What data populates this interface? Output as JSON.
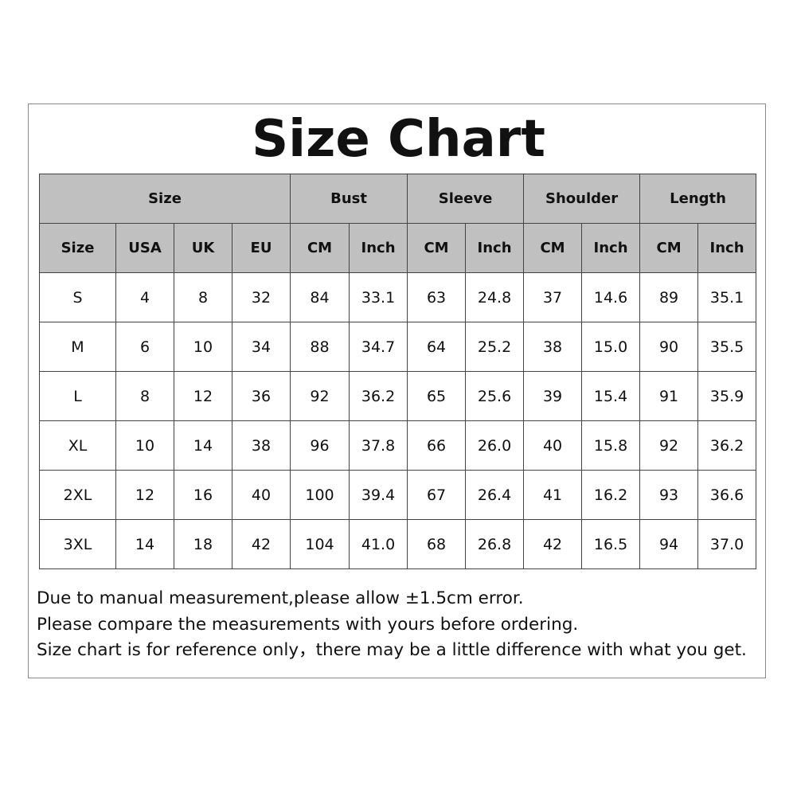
{
  "title": "Size Chart",
  "table": {
    "group_headers": [
      {
        "label": "Size",
        "span": 4
      },
      {
        "label": "Bust",
        "span": 2
      },
      {
        "label": "Sleeve",
        "span": 2
      },
      {
        "label": "Shoulder",
        "span": 2
      },
      {
        "label": "Length",
        "span": 2
      }
    ],
    "sub_headers": [
      "Size",
      "USA",
      "UK",
      "EU",
      "CM",
      "Inch",
      "CM",
      "Inch",
      "CM",
      "Inch",
      "CM",
      "Inch"
    ],
    "rows": [
      [
        "S",
        "4",
        "8",
        "32",
        "84",
        "33.1",
        "63",
        "24.8",
        "37",
        "14.6",
        "89",
        "35.1"
      ],
      [
        "M",
        "6",
        "10",
        "34",
        "88",
        "34.7",
        "64",
        "25.2",
        "38",
        "15.0",
        "90",
        "35.5"
      ],
      [
        "L",
        "8",
        "12",
        "36",
        "92",
        "36.2",
        "65",
        "25.6",
        "39",
        "15.4",
        "91",
        "35.9"
      ],
      [
        "XL",
        "10",
        "14",
        "38",
        "96",
        "37.8",
        "66",
        "26.0",
        "40",
        "15.8",
        "92",
        "36.2"
      ],
      [
        "2XL",
        "12",
        "16",
        "40",
        "100",
        "39.4",
        "67",
        "26.4",
        "41",
        "16.2",
        "93",
        "36.6"
      ],
      [
        "3XL",
        "14",
        "18",
        "42",
        "104",
        "41.0",
        "68",
        "26.8",
        "42",
        "16.5",
        "94",
        "37.0"
      ]
    ]
  },
  "notes": [
    "Due to manual measurement,please allow ±1.5cm error.",
    "Please compare the measurements with yours before ordering.",
    "Size chart is for reference only，there may be a little difference with what you get."
  ],
  "colors": {
    "header_bg": "#c0c0c0",
    "border": "#444444"
  }
}
